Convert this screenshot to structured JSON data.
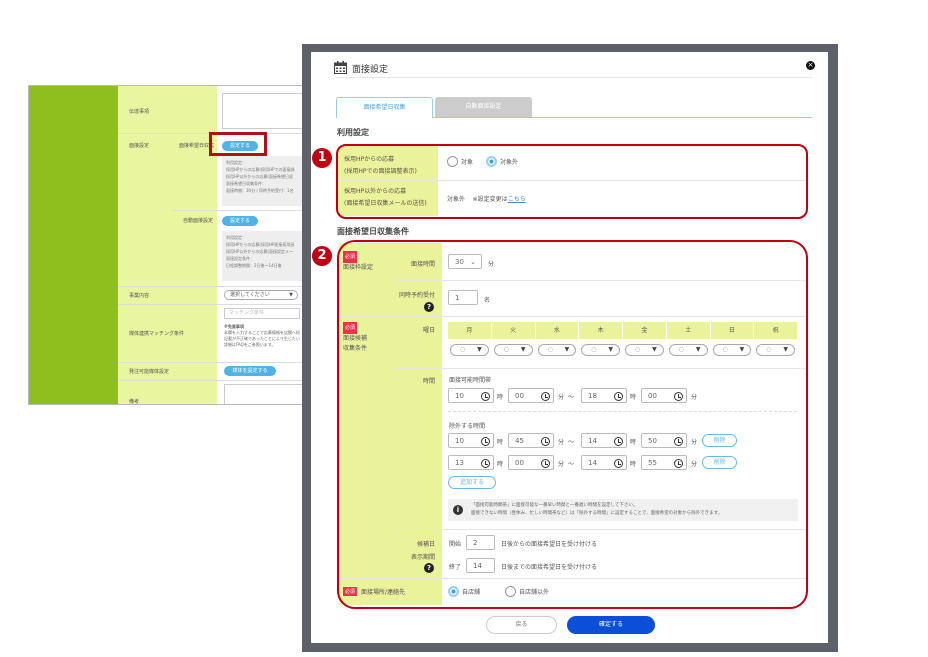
{
  "background_page": {
    "rows": [
      {
        "label": "伝達事項"
      },
      {
        "label": "面接設定",
        "sub_label": "面接希望日収集",
        "button": "設定する",
        "note_title": "利用設定：",
        "note_lines": [
          "採用HPからの応募(採用HPでの面接調",
          "採用HP以外からの応募(面接希望日収"
        ],
        "note_title2": "面接希望日収集条件：",
        "note_line2": "面接時間：30分 / 同時予約受付：1名"
      },
      {
        "sub_label": "自動面接設定",
        "button": "設定する",
        "note_title": "利用設定：",
        "note_lines": [
          "採用HPからの応募(採用HP面接採用画",
          "採用HP以外からの応募(面接設定メー"
        ],
        "note_title2": "面接設定条件：",
        "note_line2": "日程調整期間：2日後〜14日後"
      },
      {
        "label": "事業内容",
        "select": "選択してください"
      },
      {
        "label": "媒体連携マッチング条件",
        "placeholder": "マッチング条件",
        "note_title": "※免責事項",
        "note_lines": [
          "本欄を入力することで応募情報を店舗へ紐",
          "記載が不正確であったことにより生じたい",
          "詳細はFAQをご参照います。"
        ]
      },
      {
        "label": "発注可能媒体設定",
        "button": "媒体を設定する"
      },
      {
        "label": "備考"
      }
    ]
  },
  "modal": {
    "title": "面接設定",
    "icons": {
      "title": "calendar-icon",
      "close": "close-icon"
    },
    "tabs": [
      {
        "label": "面接希望日収集",
        "active": true
      },
      {
        "label": "自動面接設定",
        "active": false
      }
    ],
    "usage": {
      "heading": "利用設定",
      "badge": "1",
      "rows": [
        {
          "label": [
            "採用HPからの応募",
            "(採用HPでの面接調整表示)"
          ],
          "options": [
            {
              "label": "対象",
              "selected": false
            },
            {
              "label": "対象外",
              "selected": true
            }
          ]
        },
        {
          "label": [
            "採用HP以外からの応募",
            "(面接希望日収集メールの送信)"
          ],
          "value": "対象外",
          "note": "※設定変更は",
          "link": "こちら"
        }
      ]
    },
    "conditions": {
      "heading": "面接希望日収集条件",
      "badge": "2",
      "required": "必須",
      "frame_group": "面接枠設定",
      "duration": {
        "label": "面接時間",
        "value": "30",
        "unit": "分"
      },
      "concurrent": {
        "label": "同時予約受付",
        "value": "1",
        "unit": "名"
      },
      "candidate_group": [
        "面接候補",
        "収集条件"
      ],
      "weekday": {
        "label": "曜日",
        "days": [
          "月",
          "火",
          "水",
          "木",
          "金",
          "土",
          "日",
          "祝"
        ],
        "values": [
          "○",
          "○",
          "○",
          "○",
          "○",
          "○",
          "○",
          "○"
        ]
      },
      "time": {
        "label": "時間",
        "available_label": "面接可能時間帯",
        "available": {
          "start_h": "10",
          "start_m": "00",
          "end_h": "18",
          "end_m": "00"
        },
        "excluded_label": "除外する時間",
        "excluded": [
          {
            "start_h": "10",
            "start_m": "45",
            "end_h": "14",
            "end_m": "50"
          },
          {
            "start_h": "13",
            "start_m": "00",
            "end_h": "14",
            "end_m": "55"
          }
        ],
        "hour_unit": "時",
        "min_unit": "分",
        "tilde": "〜",
        "delete_label": "削除",
        "add_label": "追加する",
        "info_lines": [
          "「面接可能時間帯」に面接可能な一番早い時間と一番遅い時間を設定して下さい。",
          "面接できない時間（昼休み、忙しい時間帯など）は「除外する時間」に設定することで、面接希望の対象から除外できます。"
        ]
      },
      "display_period": {
        "label": [
          "候補日",
          "表示期間"
        ],
        "start_label": "開始",
        "start_value": "2",
        "start_suffix": "日後からの面接希望日を受け付ける",
        "end_label": "終了",
        "end_value": "14",
        "end_suffix": "日後までの面接希望日を受け付ける"
      },
      "location": {
        "label": "面接場所/連絡先",
        "options": [
          {
            "label": "自店舗",
            "selected": true
          },
          {
            "label": "自店舗以外",
            "selected": false
          }
        ]
      }
    },
    "buttons": {
      "back": "戻る",
      "confirm": "確定する"
    },
    "colors": {
      "highlight": "#c00010",
      "confirm": "#0b4fd9",
      "label_bg": "#e8f39a",
      "sidebar": "#8fbf1f"
    }
  }
}
